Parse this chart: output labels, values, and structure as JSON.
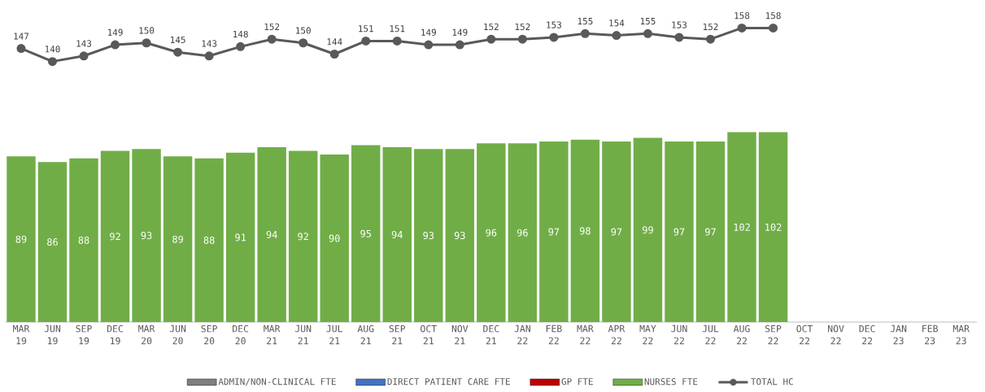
{
  "chart_data": {
    "type": "bar",
    "data_labels": true,
    "legend": "bottom",
    "tick_labels": "x",
    "marker": "circle",
    "categories": [
      "MAR 19",
      "JUN 19",
      "SEP 19",
      "DEC 19",
      "MAR 20",
      "JUN 20",
      "SEP 20",
      "DEC 20",
      "MAR 21",
      "JUN 21",
      "JUL 21",
      "AUG 21",
      "SEP 21",
      "OCT 21",
      "NOV 21",
      "DEC 21",
      "JAN 22",
      "FEB 22",
      "MAR 22",
      "APR 22",
      "MAY 22",
      "JUN 22",
      "JUL 22",
      "AUG 22",
      "SEP 22",
      "OCT 22",
      "NOV 22",
      "DEC 22",
      "JAN 23",
      "FEB 23",
      "MAR 23"
    ],
    "series": [
      {
        "name": "ADMIN/NON-CLINICAL FTE",
        "color": "#7f7f7f",
        "values": [
          null,
          null,
          null,
          null,
          null,
          null,
          null,
          null,
          null,
          null,
          null,
          null,
          null,
          null,
          null,
          null,
          null,
          null,
          null,
          null,
          null,
          null,
          null,
          null,
          null,
          null,
          null,
          null,
          null,
          null,
          null
        ]
      },
      {
        "name": "DIRECT PATIENT CARE FTE",
        "color": "#4472c4",
        "values": [
          null,
          null,
          null,
          null,
          null,
          null,
          null,
          null,
          null,
          null,
          null,
          null,
          null,
          null,
          null,
          null,
          null,
          null,
          null,
          null,
          null,
          null,
          null,
          null,
          null,
          null,
          null,
          null,
          null,
          null,
          null
        ]
      },
      {
        "name": "GP FTE",
        "color": "#c00000",
        "values": [
          null,
          null,
          null,
          null,
          null,
          null,
          null,
          null,
          null,
          null,
          null,
          null,
          null,
          null,
          null,
          null,
          null,
          null,
          null,
          null,
          null,
          null,
          null,
          null,
          null,
          null,
          null,
          null,
          null,
          null,
          null
        ]
      },
      {
        "name": "NURSES FTE",
        "color": "#70ad47",
        "values": [
          89,
          86,
          88,
          92,
          93,
          89,
          88,
          91,
          94,
          92,
          90,
          95,
          94,
          93,
          93,
          96,
          96,
          97,
          98,
          97,
          99,
          97,
          97,
          102,
          102,
          null,
          null,
          null,
          null,
          null,
          null
        ]
      },
      {
        "name": "TOTAL HC",
        "type": "line",
        "color": "#595959",
        "values": [
          147,
          140,
          143,
          149,
          150,
          145,
          143,
          148,
          152,
          150,
          144,
          151,
          151,
          149,
          149,
          152,
          152,
          153,
          155,
          154,
          155,
          153,
          152,
          158,
          158,
          null,
          null,
          null,
          null,
          null,
          null
        ]
      }
    ]
  }
}
